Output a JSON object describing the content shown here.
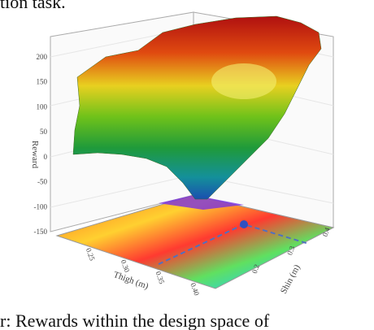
{
  "header": {
    "text": "tion task."
  },
  "figure": {
    "z_label": "Reward",
    "z_ticks": [
      "200",
      "150",
      "100",
      "50",
      "0",
      "-50",
      "-100",
      "-150"
    ],
    "thigh_label": "Thigh (m)",
    "thigh_ticks": [
      "0.25",
      "0.30",
      "0.35",
      "0.40"
    ],
    "shin_label": "Shin (m)",
    "shin_ticks": [
      "0.4",
      "0.3",
      "0.2"
    ]
  },
  "caption": {
    "text": "r: Rewards within the design space of"
  }
}
